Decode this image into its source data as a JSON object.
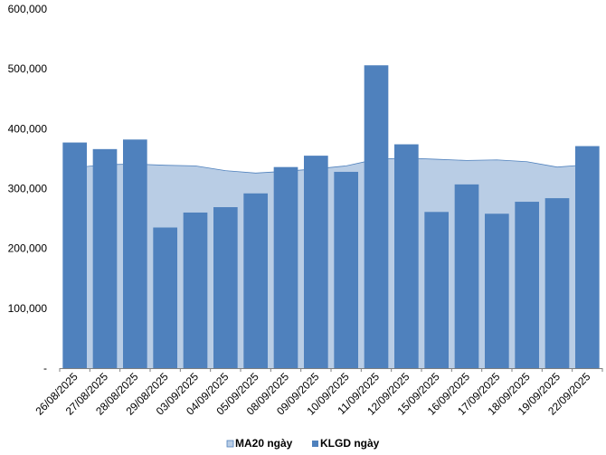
{
  "chart_data": {
    "type": "bar",
    "categories": [
      "26/08/2025",
      "27/08/2025",
      "28/08/2025",
      "29/08/2025",
      "03/09/2025",
      "04/09/2025",
      "05/09/2025",
      "08/09/2025",
      "09/09/2025",
      "10/09/2025",
      "11/09/2025",
      "12/09/2025",
      "15/09/2025",
      "16/09/2025",
      "17/09/2025",
      "18/09/2025",
      "19/09/2025",
      "22/09/2025"
    ],
    "series": [
      {
        "name": "MA20 ngày",
        "kind": "area",
        "color": "#b9cde5",
        "line_color": "#4f81bd",
        "values": [
          335000,
          340000,
          341000,
          339000,
          338000,
          330000,
          326000,
          329000,
          333000,
          338000,
          349000,
          351000,
          349000,
          347000,
          348000,
          345000,
          336000,
          340000
        ]
      },
      {
        "name": "KLGD ngày",
        "kind": "bar",
        "color": "#4f81bd",
        "values": [
          377000,
          366000,
          382000,
          235000,
          260000,
          269000,
          292000,
          336000,
          355000,
          328000,
          506000,
          374000,
          261000,
          307000,
          258000,
          278000,
          284000,
          371000
        ]
      }
    ],
    "yticks": [
      "-",
      "100,000",
      "200,000",
      "300,000",
      "400,000",
      "500,000",
      "600,000"
    ],
    "ylim": [
      0,
      600000
    ],
    "title": "",
    "xlabel": "",
    "ylabel": "",
    "legend_position": "bottom",
    "grid": false
  }
}
